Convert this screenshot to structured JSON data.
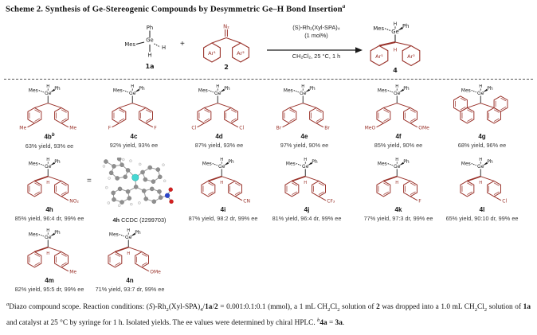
{
  "title": {
    "text": "Scheme 2. Synthesis of Ge-Stereogenic Compounds by Desymmetric Ge–H Bond Insertion",
    "sup": "a"
  },
  "colors": {
    "structure_red": "#993129",
    "bond_black": "#1a1a1a",
    "germanium_teal": "#46d7d2",
    "carbon_grey": "#8f8f8f",
    "hydrogen_white": "#f2f2f2",
    "nitrogen_blue": "#2b46cc",
    "oxygen_red": "#d42020"
  },
  "header_labels": {
    "mes": "Mes",
    "h": "H",
    "ph": "Ph",
    "ge": "Ge"
  },
  "reaction": {
    "reactant1": {
      "label": "1a",
      "ph": "Ph",
      "ge": "Ge",
      "mes": "Mes",
      "h_wedge": "H",
      "h_bottom": "H"
    },
    "plus": "+",
    "reactant2": {
      "label": "2",
      "n2": "N₂",
      "ar1": "Ar¹",
      "ar2": "Ar²"
    },
    "conditions": {
      "line1": "(S)-Rh₂(Xyl-SPA)₄",
      "line2": "(1 mol%)",
      "below": "CH₂Cl₂, 25 °C, 1 h"
    },
    "product": {
      "label": "4",
      "ar1": "Ar¹",
      "ar2": "Ar²",
      "h": "H"
    }
  },
  "compounds": [
    {
      "id": "4b",
      "sup": "b",
      "yield": "63% yield, 93% ee",
      "left_sub": "Me",
      "right_sub": "Me",
      "center_h": false,
      "naphthyl": false,
      "row": 1
    },
    {
      "id": "4c",
      "sup": "",
      "yield": "92% yield, 93% ee",
      "left_sub": "F",
      "right_sub": "F",
      "center_h": false,
      "naphthyl": false,
      "row": 1
    },
    {
      "id": "4d",
      "sup": "",
      "yield": "87% yield, 93% ee",
      "left_sub": "Cl",
      "right_sub": "Cl",
      "center_h": false,
      "naphthyl": false,
      "row": 1
    },
    {
      "id": "4e",
      "sup": "",
      "yield": "97% yield, 90% ee",
      "left_sub": "Br",
      "right_sub": "Br",
      "center_h": false,
      "naphthyl": false,
      "row": 1
    },
    {
      "id": "4f",
      "sup": "",
      "yield": "85% yield, 90% ee",
      "left_sub": "MeO",
      "right_sub": "OMe",
      "center_h": false,
      "naphthyl": false,
      "row": 1
    },
    {
      "id": "4g",
      "sup": "",
      "yield": "68% yield, 96% ee",
      "left_sub": "",
      "right_sub": "",
      "center_h": false,
      "naphthyl": true,
      "row": 1
    },
    {
      "id": "4h",
      "sup": "",
      "yield": "85% yield, 96:4 dr, 99% ee",
      "left_sub": "",
      "right_sub": "NO₂",
      "center_h": true,
      "naphthyl": false,
      "row": 2
    },
    {
      "id": "4i",
      "sup": "",
      "yield": "87% yield, 98:2 dr, 99% ee",
      "left_sub": "",
      "right_sub": "CN",
      "center_h": true,
      "naphthyl": false,
      "row": 2
    },
    {
      "id": "4j",
      "sup": "",
      "yield": "81% yield, 96:4 dr, 99% ee",
      "left_sub": "",
      "right_sub": "CF₃",
      "center_h": true,
      "naphthyl": false,
      "row": 2
    },
    {
      "id": "4k",
      "sup": "",
      "yield": "77% yield, 97:3 dr, 99% ee",
      "left_sub": "",
      "right_sub": "F",
      "center_h": true,
      "naphthyl": false,
      "row": 2
    },
    {
      "id": "4l",
      "sup": "",
      "yield": "65% yield, 90:10 dr, 99% ee",
      "left_sub": "",
      "right_sub": "Cl",
      "center_h": true,
      "naphthyl": false,
      "row": 2
    },
    {
      "id": "4m",
      "sup": "",
      "yield": "82% yield, 95:5 dr, 99% ee",
      "left_sub": "",
      "right_sub": "Me",
      "center_h": true,
      "naphthyl": false,
      "row": 3
    },
    {
      "id": "4n",
      "sup": "",
      "yield": "71% yield, 93:7 dr, 99% ee",
      "left_sub": "",
      "right_sub": "OMe",
      "center_h": true,
      "naphthyl": false,
      "row": 3
    }
  ],
  "ccdc": {
    "equals": "=",
    "caption": [
      {
        "t": "4h",
        "b": true
      },
      {
        "t": " CCDC (2299703)"
      }
    ]
  },
  "footnote": [
    {
      "t": "a",
      "sup": true,
      "i": true
    },
    {
      "t": "Diazo compound scope. Reaction conditions: ("
    },
    {
      "t": "S",
      "i": true
    },
    {
      "t": ")-Rh"
    },
    {
      "t": "2",
      "sub": true
    },
    {
      "t": "(Xyl-SPA)"
    },
    {
      "t": "4",
      "sub": true
    },
    {
      "t": "/"
    },
    {
      "t": "1a",
      "b": true
    },
    {
      "t": "/"
    },
    {
      "t": "2",
      "b": true
    },
    {
      "t": " = 0.001:0.1:0.1 (mmol), a 1 mL CH"
    },
    {
      "t": "2",
      "sub": true
    },
    {
      "t": "Cl"
    },
    {
      "t": "2",
      "sub": true
    },
    {
      "t": " solution of "
    },
    {
      "t": "2",
      "b": true
    },
    {
      "t": " was dropped into a 1.0 mL CH"
    },
    {
      "t": "2",
      "sub": true
    },
    {
      "t": "Cl"
    },
    {
      "t": "2",
      "sub": true
    },
    {
      "t": " solution of "
    },
    {
      "t": "1a",
      "b": true
    },
    {
      "t": " and catalyst at 25 °C by syringe for 1 h. Isolated yields. The ee values were determined by chiral HPLC. "
    },
    {
      "t": "b",
      "sup": true,
      "i": true
    },
    {
      "t": "4a",
      "b": true
    },
    {
      "t": " = "
    },
    {
      "t": "3a",
      "b": true
    },
    {
      "t": "."
    }
  ]
}
